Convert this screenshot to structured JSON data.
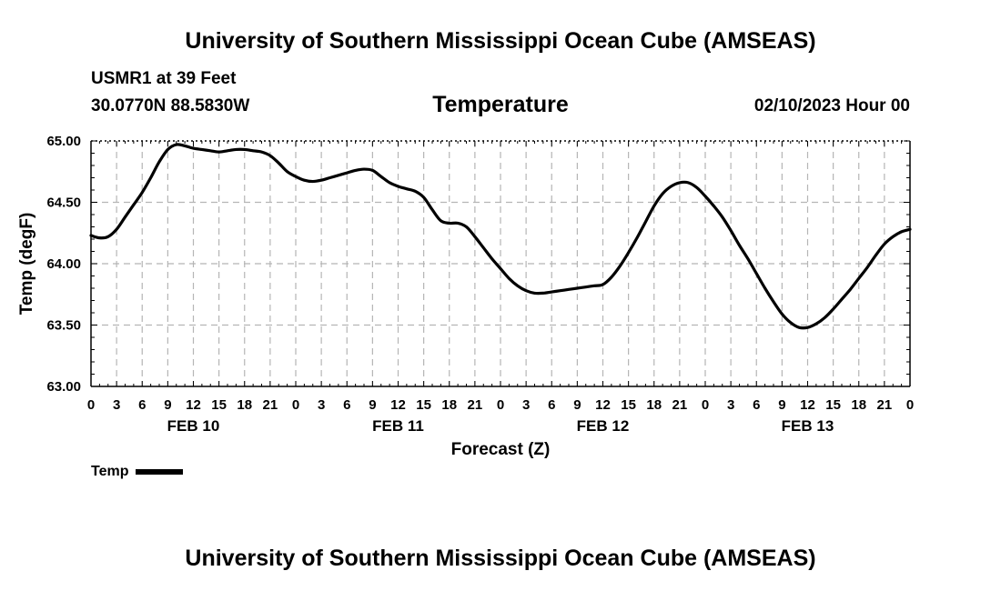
{
  "header": {
    "title": "University of Southern Mississippi Ocean Cube (AMSEAS)",
    "station": "USMR1 at 39 Feet",
    "coords": "30.0770N  88.5830W",
    "variable": "Temperature",
    "date": "02/10/2023 Hour 00"
  },
  "footer": {
    "title": "University of Southern Mississippi Ocean Cube (AMSEAS)"
  },
  "legend": {
    "label": "Temp"
  },
  "chart_data": {
    "type": "line",
    "title": "Temperature",
    "xlabel": "Forecast (Z)",
    "ylabel": "Temp (degF)",
    "ylim": [
      63.0,
      65.0
    ],
    "yticks": [
      63.0,
      63.5,
      64.0,
      64.5,
      65.0
    ],
    "ytick_labels": [
      "63.00",
      "63.50",
      "64.00",
      "64.50",
      "65.00"
    ],
    "xlim": [
      0,
      96
    ],
    "xtick_labels": [
      "0",
      "3",
      "6",
      "9",
      "12",
      "15",
      "18",
      "21",
      "0",
      "3",
      "6",
      "9",
      "12",
      "15",
      "18",
      "21",
      "0",
      "3",
      "6",
      "9",
      "12",
      "15",
      "18",
      "21",
      "0",
      "3",
      "6",
      "9",
      "12",
      "15",
      "18",
      "21",
      "0"
    ],
    "day_labels": [
      {
        "hour": 12,
        "label": "FEB 10"
      },
      {
        "hour": 36,
        "label": "FEB 11"
      },
      {
        "hour": 60,
        "label": "FEB 12"
      },
      {
        "hour": 84,
        "label": "FEB 13"
      }
    ],
    "grid": true,
    "series": [
      {
        "name": "Temp",
        "color": "#000000",
        "x": [
          0,
          1,
          2,
          3,
          4,
          5,
          6,
          7,
          8,
          9,
          10,
          11,
          12,
          13,
          14,
          15,
          16,
          17,
          18,
          19,
          20,
          21,
          22,
          23,
          24,
          25,
          26,
          27,
          28,
          29,
          30,
          31,
          32,
          33,
          34,
          35,
          36,
          37,
          38,
          39,
          40,
          41,
          42,
          43,
          44,
          45,
          46,
          47,
          48,
          49,
          50,
          51,
          52,
          53,
          54,
          55,
          56,
          57,
          58,
          59,
          60,
          61,
          62,
          63,
          64,
          65,
          66,
          67,
          68,
          69,
          70,
          71,
          72,
          73,
          74,
          75,
          76,
          77,
          78,
          79,
          80,
          81,
          82,
          83,
          84,
          85,
          86,
          87,
          88,
          89,
          90,
          91,
          92,
          93,
          94,
          95,
          96
        ],
        "values": [
          64.23,
          64.21,
          64.22,
          64.28,
          64.38,
          64.48,
          64.58,
          64.7,
          64.83,
          64.93,
          64.97,
          64.96,
          64.94,
          64.93,
          64.92,
          64.91,
          64.92,
          64.93,
          64.93,
          64.92,
          64.91,
          64.88,
          64.82,
          64.75,
          64.71,
          64.68,
          64.67,
          64.68,
          64.7,
          64.72,
          64.74,
          64.76,
          64.77,
          64.76,
          64.71,
          64.66,
          64.63,
          64.61,
          64.59,
          64.54,
          64.44,
          64.35,
          64.33,
          64.33,
          64.3,
          64.22,
          64.13,
          64.04,
          63.96,
          63.88,
          63.82,
          63.78,
          63.76,
          63.76,
          63.77,
          63.78,
          63.79,
          63.8,
          63.81,
          63.82,
          63.83,
          63.89,
          63.98,
          64.09,
          64.21,
          64.34,
          64.47,
          64.57,
          64.63,
          64.66,
          64.66,
          64.62,
          64.55,
          64.47,
          64.38,
          64.27,
          64.15,
          64.04,
          63.92,
          63.8,
          63.69,
          63.59,
          63.52,
          63.48,
          63.48,
          63.51,
          63.56,
          63.63,
          63.71,
          63.79,
          63.88,
          63.97,
          64.07,
          64.16,
          64.22,
          64.26,
          64.28
        ]
      }
    ]
  }
}
